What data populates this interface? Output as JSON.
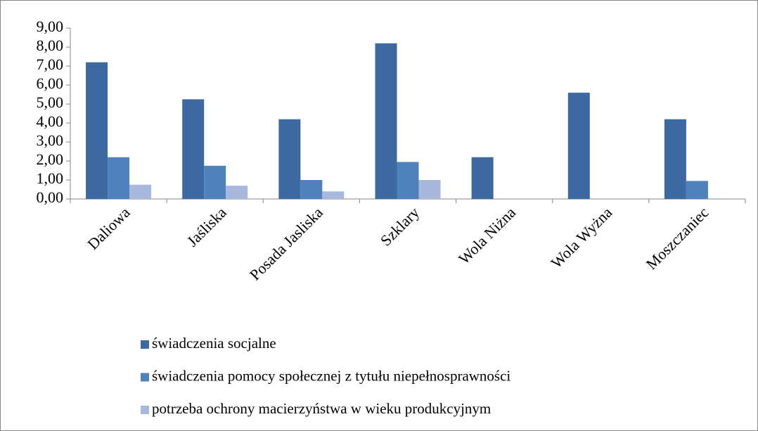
{
  "chart_data": {
    "type": "bar",
    "categories": [
      "Daliowa",
      "Jaśliska",
      "Posada Jasliska",
      "Szklary",
      "Wola Niżna",
      "Wola Wyżna",
      "Moszczaniec"
    ],
    "series": [
      {
        "name": "świadczenia socjalne",
        "color": "#3c69a0",
        "values": [
          7.2,
          5.25,
          4.2,
          8.2,
          2.2,
          5.6,
          4.2
        ]
      },
      {
        "name": "świadczenia pomocy społecznej z tytułu niepełnosprawności",
        "color": "#4f81bd",
        "values": [
          2.2,
          1.75,
          1.0,
          1.95,
          0,
          0,
          0.95
        ]
      },
      {
        "name": "potrzeba ochrony macierzyństwa w wieku produkcyjnym",
        "color": "#a6b9dc",
        "values": [
          0.75,
          0.7,
          0.4,
          1.0,
          0,
          0,
          0
        ]
      }
    ],
    "ylim": [
      0,
      9
    ],
    "yticks": [
      {
        "value": 0,
        "label": "0,00"
      },
      {
        "value": 1,
        "label": "1,00"
      },
      {
        "value": 2,
        "label": "2,00"
      },
      {
        "value": 3,
        "label": "3,00"
      },
      {
        "value": 4,
        "label": "4,00"
      },
      {
        "value": 5,
        "label": "5,00"
      },
      {
        "value": 6,
        "label": "6,00"
      },
      {
        "value": 7,
        "label": "7,00"
      },
      {
        "value": 8,
        "label": "8,00"
      },
      {
        "value": 9,
        "label": "9,00"
      }
    ],
    "grid": false
  }
}
